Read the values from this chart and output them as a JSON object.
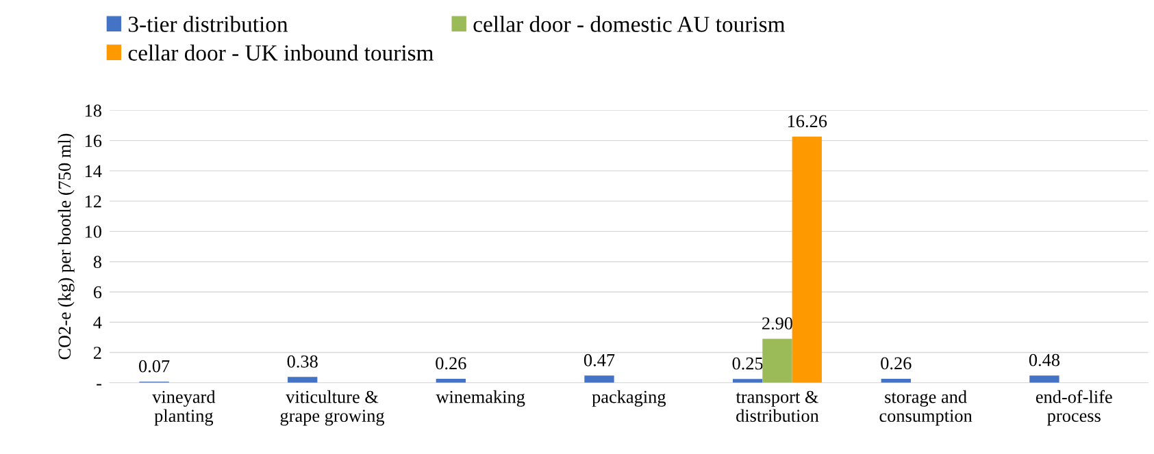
{
  "chart_data": {
    "type": "bar",
    "ylabel": "CO2-e (kg) per bootle (750 ml)",
    "categories": [
      "vineyard\nplanting",
      "viticulture &\ngrape growing",
      "winemaking",
      "packaging",
      "transport &\ndistribution",
      "storage and\nconsumption",
      "end-of-life\nprocess"
    ],
    "series": [
      {
        "name": "3-tier distribution",
        "color": "#4472c4",
        "values": [
          0.07,
          0.38,
          0.26,
          0.47,
          0.25,
          0.26,
          0.48
        ],
        "value_labels": [
          "0.07",
          "0.38",
          "0.26",
          "0.47",
          "0.25",
          "0.26",
          "0.48"
        ]
      },
      {
        "name": "cellar door - domestic AU tourism",
        "color": "#9bbb59",
        "values": [
          null,
          null,
          null,
          null,
          2.9,
          null,
          null
        ],
        "value_labels": [
          null,
          null,
          null,
          null,
          "2.90",
          null,
          null
        ]
      },
      {
        "name": "cellar door - UK inbound tourism",
        "color": "#ff9900",
        "values": [
          null,
          null,
          null,
          null,
          16.26,
          null,
          null
        ],
        "value_labels": [
          null,
          null,
          null,
          null,
          "16.26",
          null,
          null
        ]
      }
    ],
    "ylim": [
      0,
      18
    ],
    "yticks": [
      {
        "value": 0,
        "label": "-"
      },
      2,
      4,
      6,
      8,
      10,
      12,
      14,
      16,
      18
    ],
    "grid": "y",
    "legend": "top left"
  }
}
